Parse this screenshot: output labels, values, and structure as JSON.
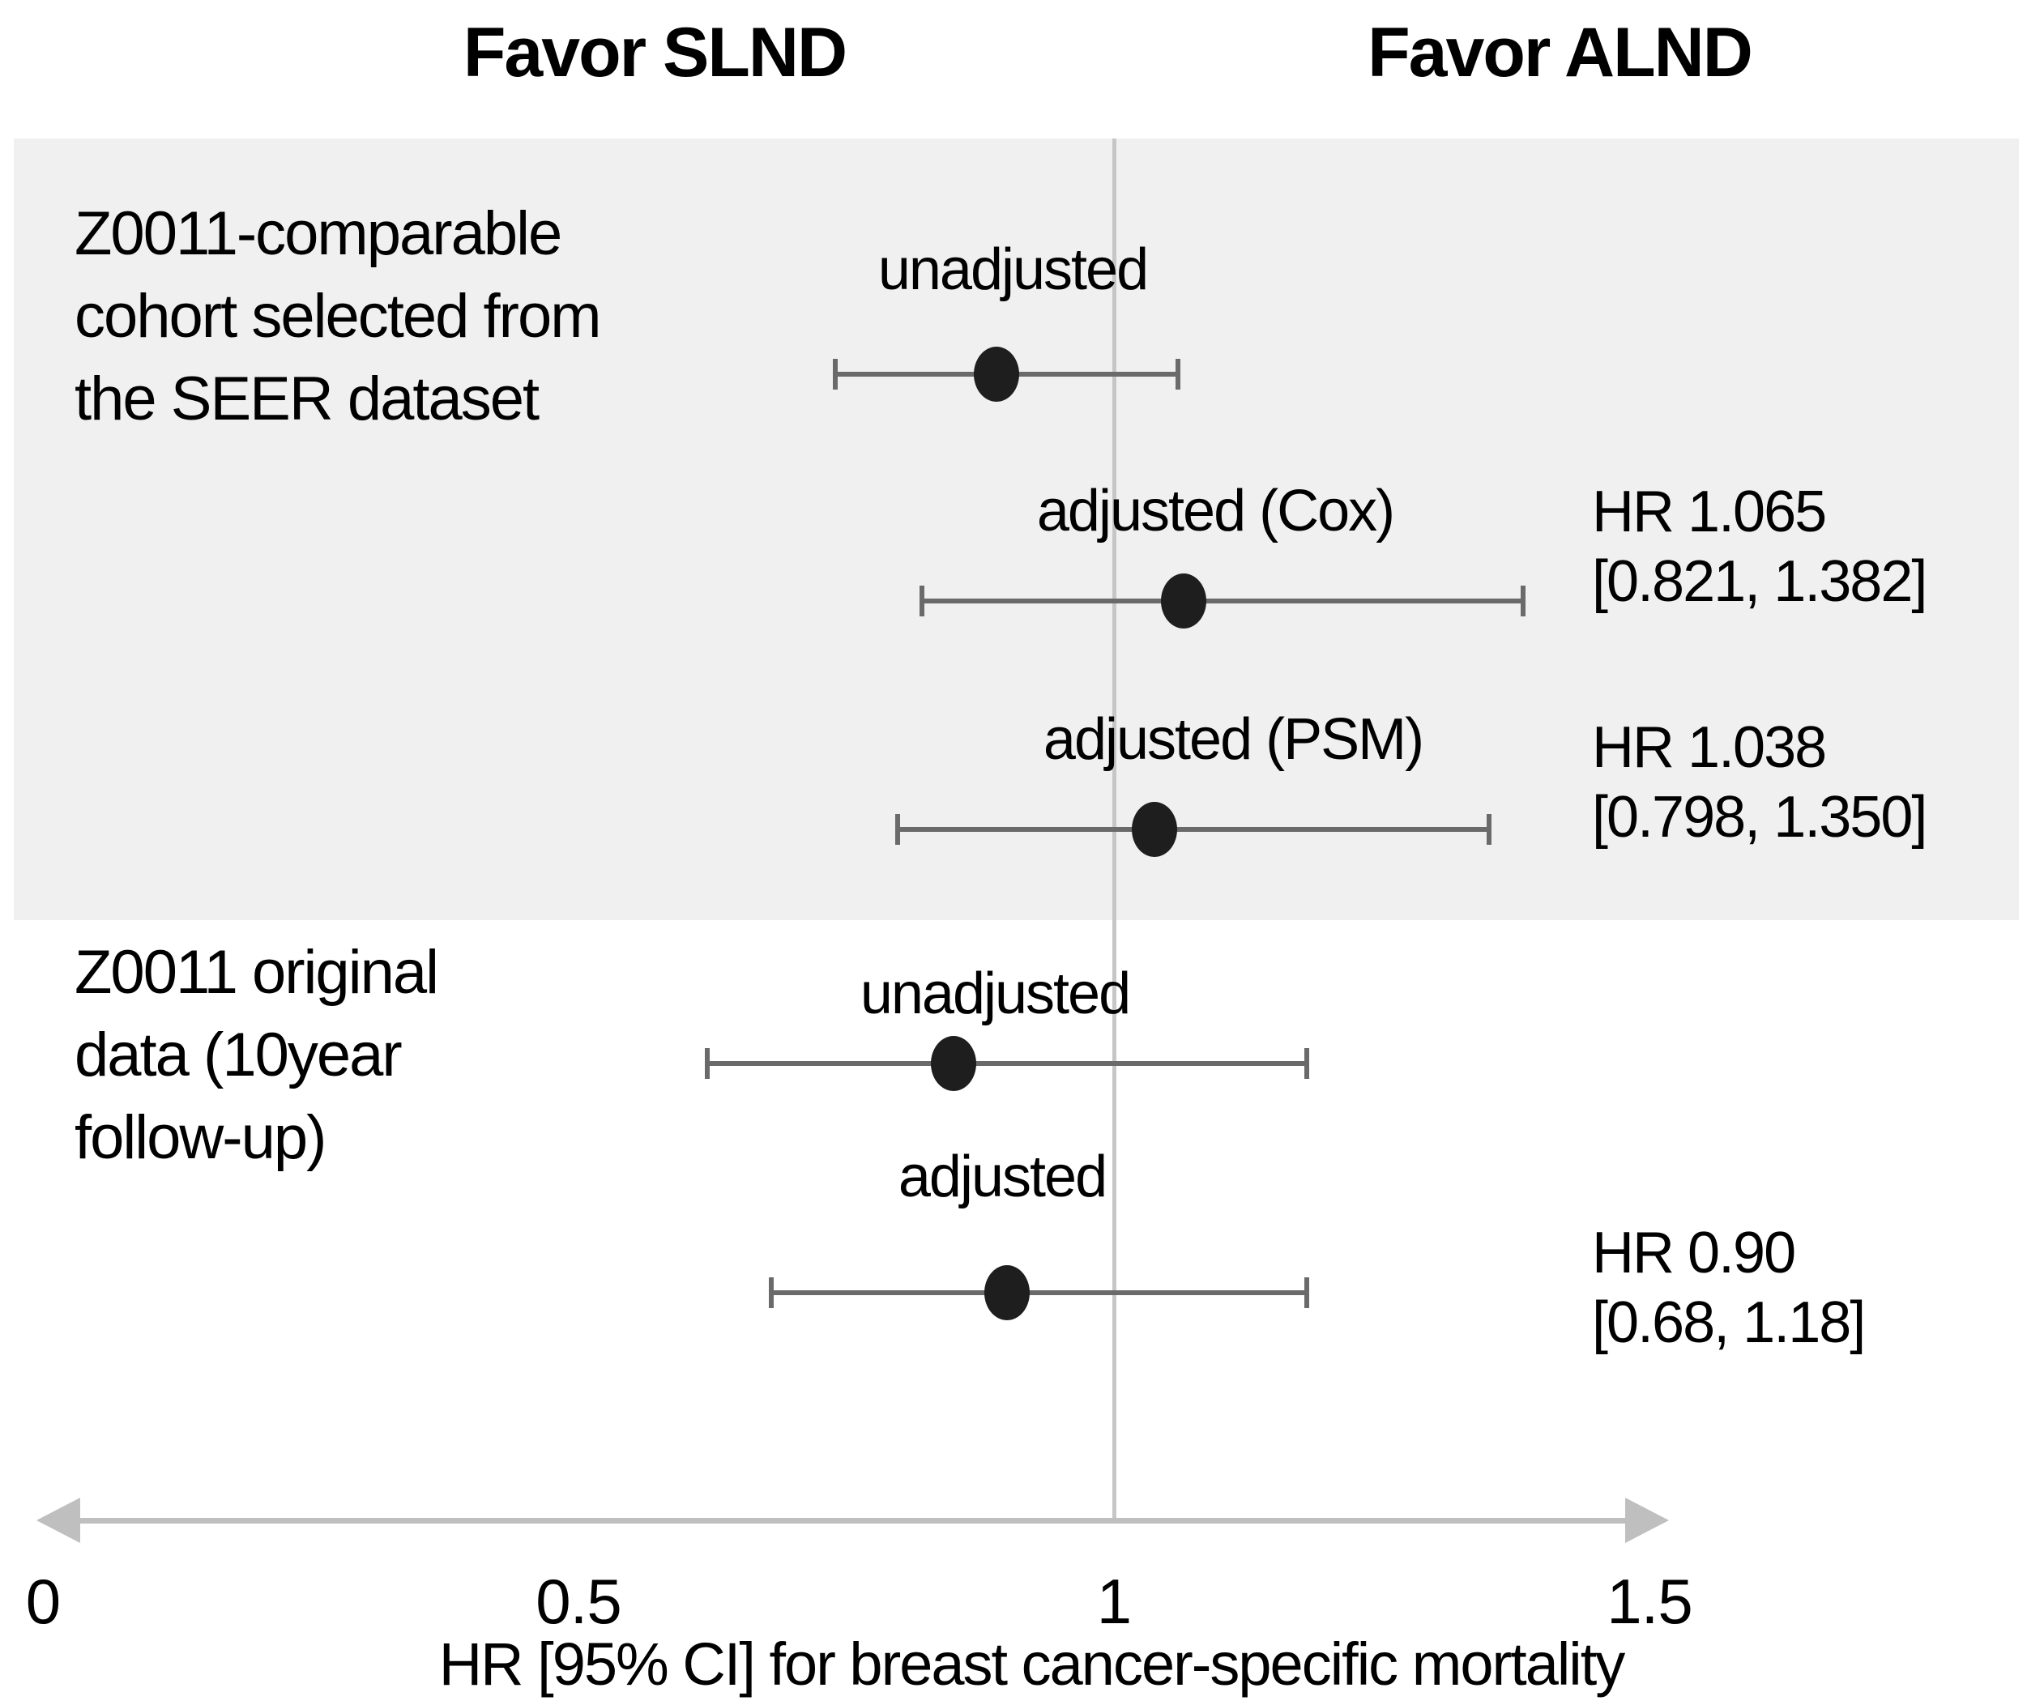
{
  "header": {
    "favor_left": "Favor SLND",
    "favor_right": "Favor ALND"
  },
  "groups": [
    {
      "label_lines": [
        "Z0011-comparable",
        "cohort selected from",
        "the SEER dataset"
      ]
    },
    {
      "label_lines": [
        "Z0011 original",
        "data (10year",
        "follow-up)"
      ]
    }
  ],
  "colors": {
    "panel_background": "#f0f0f0",
    "reference_line": "#c6c6c6",
    "axis_arrow": "#bfbfbf",
    "ci_line": "#6a6a6a",
    "point": "#1e1e1e",
    "text": "#000000"
  },
  "chart_data": {
    "type": "scatter",
    "subtype": "forest-plot",
    "title": "",
    "xlabel": "HR [95% CI] for breast cancer-specific mortality",
    "x_ticks": [
      0,
      0.5,
      1,
      1.5
    ],
    "xlim": [
      0,
      1.55
    ],
    "reference_line_x": 1,
    "favor_left": "Favor SLND",
    "favor_right": "Favor ALND",
    "grid": false,
    "legend": "none",
    "rows": [
      {
        "group": "Z0011-comparable cohort selected from the SEER dataset",
        "label": "unadjusted",
        "hr": 0.89,
        "ci_low": 0.74,
        "ci_high": 1.06,
        "annotation": null
      },
      {
        "group": "Z0011-comparable cohort selected from the SEER dataset",
        "label": "adjusted (Cox)",
        "hr": 1.065,
        "ci_low": 0.821,
        "ci_high": 1.382,
        "annotation": [
          "HR 1.065",
          "[0.821, 1.382]"
        ]
      },
      {
        "group": "Z0011-comparable cohort selected from the SEER dataset",
        "label": "adjusted (PSM)",
        "hr": 1.038,
        "ci_low": 0.798,
        "ci_high": 1.35,
        "annotation": [
          "HR 1.038",
          "[0.798, 1.350]"
        ]
      },
      {
        "group": "Z0011 original data (10year follow-up)",
        "label": "unadjusted",
        "hr": 0.85,
        "ci_low": 0.62,
        "ci_high": 1.18,
        "annotation": null
      },
      {
        "group": "Z0011 original data (10year follow-up)",
        "label": "adjusted",
        "hr": 0.9,
        "ci_low": 0.68,
        "ci_high": 1.18,
        "annotation": [
          "HR 0.90",
          "[0.68, 1.18]"
        ]
      }
    ]
  }
}
